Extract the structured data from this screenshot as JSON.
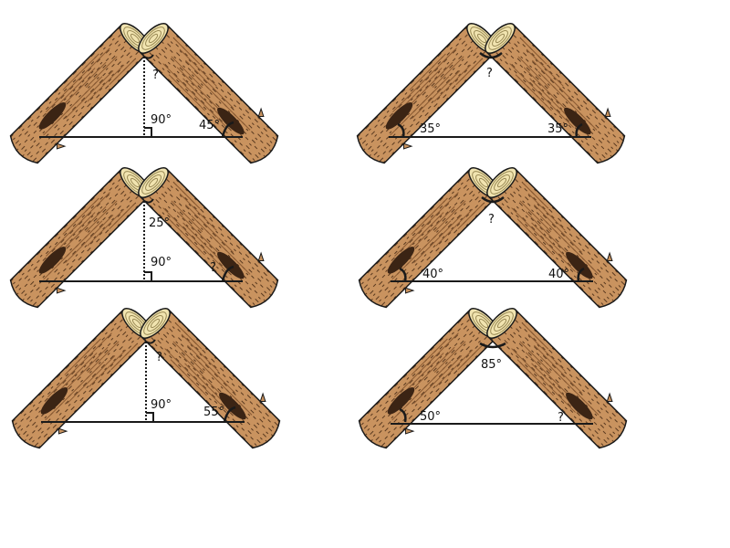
{
  "colors": {
    "bark": "#c9935f",
    "bark_dark": "#8a5a32",
    "bark_shadow": "#3b2414",
    "wood_end": "#f1e4b0",
    "ring": "#9a8a55",
    "outline": "#1a1a1a"
  },
  "problems": [
    {
      "id": "p1",
      "kind": "bisected",
      "labels": {
        "top": "?",
        "right_angle": "90°",
        "base_angle": "45°"
      }
    },
    {
      "id": "p2",
      "kind": "isosceles",
      "labels": {
        "apex": "?",
        "left_angle": "35°",
        "right_angle": "35°"
      }
    },
    {
      "id": "p3",
      "kind": "bisected",
      "labels": {
        "top": "25°",
        "right_angle": "90°",
        "base_angle": "?"
      }
    },
    {
      "id": "p4",
      "kind": "isosceles",
      "labels": {
        "apex": "?",
        "left_angle": "40°",
        "right_angle": "40°"
      }
    },
    {
      "id": "p5",
      "kind": "bisected",
      "labels": {
        "top": "?",
        "right_angle": "90°",
        "base_angle": "55°"
      }
    },
    {
      "id": "p6",
      "kind": "isosceles",
      "labels": {
        "apex": "85°",
        "left_angle": "50°",
        "right_angle": "?"
      }
    }
  ]
}
